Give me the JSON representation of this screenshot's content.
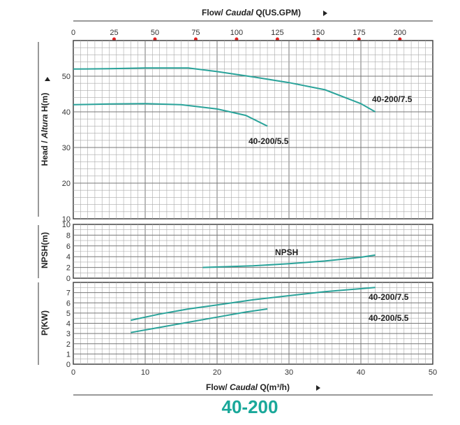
{
  "chart_data": {
    "type": "line",
    "model": "40-200",
    "colors": {
      "curve": "#2aa39a",
      "grid": "#999999",
      "marker": "#e02020",
      "model": "#1aa89a"
    },
    "top_axis": {
      "label_prefix": "Flow/ ",
      "label_italic": "Caudal",
      "label_suffix": " Q(US.GPM)",
      "ticks": [
        "0",
        "25",
        "50",
        "75",
        "100",
        "125",
        "150",
        "175",
        "200"
      ],
      "tick_values": [
        0,
        25,
        50,
        75,
        100,
        125,
        150,
        175,
        200
      ]
    },
    "bottom_axis": {
      "label_prefix": "Flow/ ",
      "label_italic": "Caudal",
      "label_suffix": " Q(m³/h)",
      "ticks": [
        "0",
        "10",
        "20",
        "30",
        "40",
        "50"
      ],
      "range": [
        0,
        50
      ]
    },
    "head": {
      "ylabel_prefix": "Head / ",
      "ylabel_italic": "Altura",
      "ylabel_suffix": " H(m)",
      "ylim": [
        10,
        60
      ],
      "ticks": [
        "10",
        "20",
        "30",
        "40",
        "50"
      ],
      "series": [
        {
          "name": "40-200/7.5",
          "points": [
            [
              0,
              52
            ],
            [
              5,
              52.1
            ],
            [
              10,
              52.3
            ],
            [
              16,
              52.3
            ],
            [
              20,
              51.3
            ],
            [
              25,
              49.8
            ],
            [
              30,
              48.2
            ],
            [
              35,
              46.2
            ],
            [
              40,
              42.3
            ],
            [
              42,
              40
            ]
          ]
        },
        {
          "name": "40-200/5.5",
          "points": [
            [
              0,
              42
            ],
            [
              5,
              42.2
            ],
            [
              10,
              42.3
            ],
            [
              15,
              42
            ],
            [
              20,
              40.8
            ],
            [
              24,
              39
            ],
            [
              27,
              36
            ]
          ]
        }
      ]
    },
    "npsh": {
      "ylabel": "NPSH(m)",
      "ylim": [
        0,
        10
      ],
      "ticks": [
        "0",
        "2",
        "4",
        "6",
        "8",
        "10"
      ],
      "series": [
        {
          "name": "NPSH",
          "points": [
            [
              18,
              2
            ],
            [
              25,
              2.3
            ],
            [
              30,
              2.7
            ],
            [
              35,
              3.2
            ],
            [
              40,
              3.9
            ],
            [
              42,
              4.3
            ]
          ]
        }
      ]
    },
    "power": {
      "ylabel": "P(KW)",
      "ylim": [
        0,
        8
      ],
      "ticks": [
        "0",
        "1",
        "2",
        "3",
        "4",
        "5",
        "6",
        "7"
      ],
      "series": [
        {
          "name": "40-200/7.5",
          "points": [
            [
              8,
              4.3
            ],
            [
              12,
              4.9
            ],
            [
              16,
              5.4
            ],
            [
              20,
              5.8
            ],
            [
              25,
              6.3
            ],
            [
              30,
              6.7
            ],
            [
              35,
              7.1
            ],
            [
              42,
              7.5
            ]
          ]
        },
        {
          "name": "40-200/5.5",
          "points": [
            [
              8,
              3.1
            ],
            [
              12,
              3.6
            ],
            [
              16,
              4.1
            ],
            [
              20,
              4.6
            ],
            [
              24,
              5.1
            ],
            [
              27,
              5.4
            ]
          ]
        }
      ]
    },
    "labels": {
      "head_75": "40-200/7.5",
      "head_55": "40-200/5.5",
      "npsh": "NPSH",
      "power_75": "40-200/7.5",
      "power_55": "40-200/5.5"
    }
  }
}
